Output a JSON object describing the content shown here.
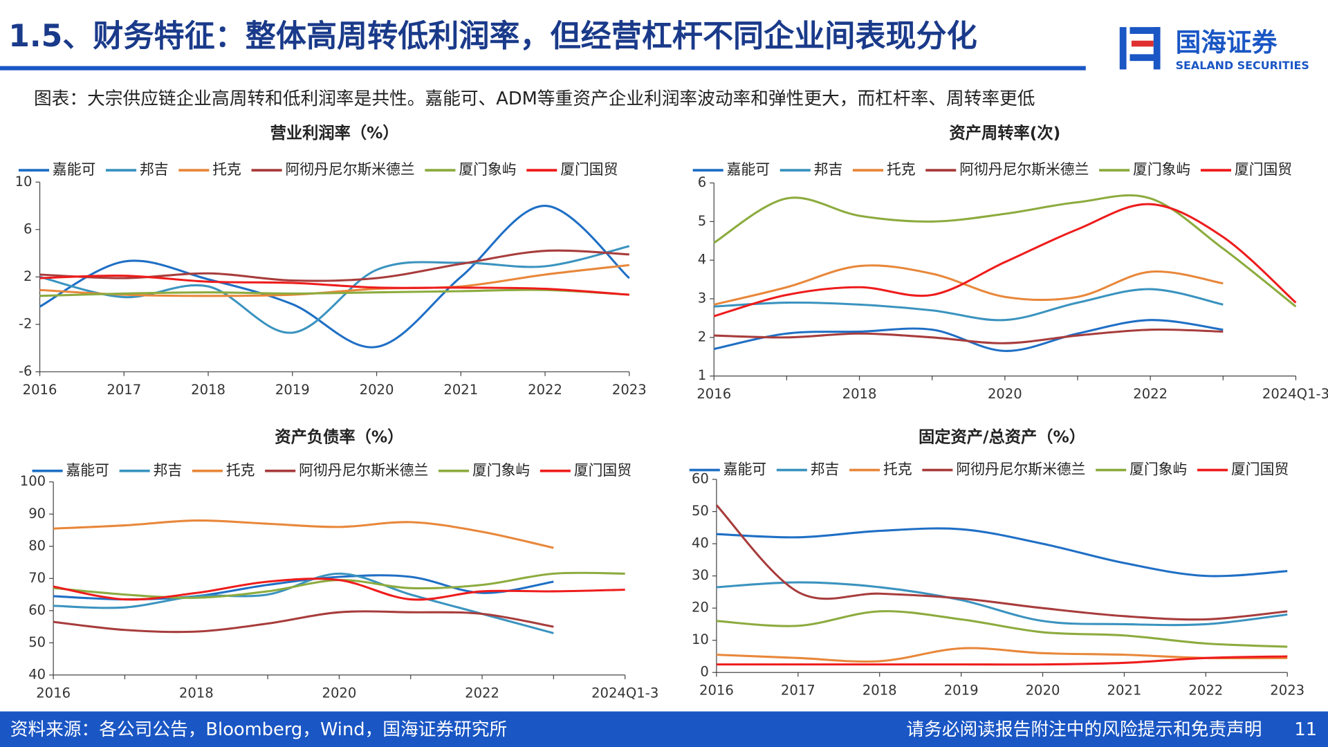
{
  "header": {
    "title": "1.5、财务特征：整体高周转低利润率，但经营杠杆不同企业间表现分化",
    "logo_cn": "国海证券",
    "logo_en": "SEALAND SECURITIES"
  },
  "subtitle": "图表：大宗供应链企业高周转和低利润率是共性。嘉能可、ADM等重资产企业利润率波动率和弹性更大，而杠杆率、周转率更低",
  "chart_data": [
    {
      "type": "line",
      "smooth": true,
      "title": "营业利润率（%）",
      "legend": "top",
      "categories": [
        "2016",
        "2017",
        "2018",
        "2019",
        "2020",
        "2021",
        "2022",
        "2023"
      ],
      "ylim": [
        -6,
        10
      ],
      "yticks": [
        -6,
        -2,
        2,
        6,
        10
      ],
      "series": [
        {
          "name": "嘉能可",
          "color": "#1f6fc5",
          "values": [
            -0.5,
            3.3,
            1.8,
            -0.3,
            -3.9,
            2.0,
            8.0,
            1.9
          ]
        },
        {
          "name": "邦吉",
          "color": "#3a93bf",
          "values": [
            2.0,
            0.3,
            1.2,
            -2.7,
            2.6,
            3.2,
            2.9,
            4.6
          ]
        },
        {
          "name": "托克",
          "color": "#e8873a",
          "values": [
            0.9,
            0.5,
            0.4,
            0.5,
            1.0,
            1.2,
            2.2,
            3.0
          ]
        },
        {
          "name": "阿彻丹尼尔斯米德兰",
          "color": "#a83c3c",
          "values": [
            2.2,
            1.9,
            2.3,
            1.7,
            1.9,
            3.1,
            4.2,
            3.9
          ]
        },
        {
          "name": "厦门象屿",
          "color": "#8cab3e",
          "values": [
            0.4,
            0.6,
            0.7,
            0.6,
            0.7,
            0.8,
            0.9,
            0.5
          ]
        },
        {
          "name": "厦门国贸",
          "color": "#ee1c1c",
          "values": [
            1.9,
            2.1,
            1.6,
            1.5,
            1.1,
            1.1,
            1.0,
            0.5
          ]
        }
      ]
    },
    {
      "type": "line",
      "smooth": true,
      "title": "资产周转率(次)",
      "legend": "top",
      "categories": [
        "2016",
        null,
        "2018",
        null,
        "2020",
        null,
        "2022",
        null,
        "2024Q1-3"
      ],
      "ylim": [
        1,
        6
      ],
      "yticks": [
        1,
        2,
        3,
        4,
        5,
        6
      ],
      "series": [
        {
          "name": "嘉能可",
          "color": "#1f6fc5",
          "values": [
            1.7,
            2.1,
            2.15,
            2.2,
            1.65,
            2.1,
            2.45,
            2.2,
            null
          ]
        },
        {
          "name": "邦吉",
          "color": "#3a93bf",
          "values": [
            2.8,
            2.9,
            2.85,
            2.7,
            2.45,
            2.9,
            3.25,
            2.85,
            null
          ]
        },
        {
          "name": "托克",
          "color": "#e8873a",
          "values": [
            2.85,
            3.3,
            3.85,
            3.65,
            3.05,
            3.05,
            3.7,
            3.4,
            null
          ]
        },
        {
          "name": "阿彻丹尼尔斯米德兰",
          "color": "#a83c3c",
          "values": [
            2.05,
            2.0,
            2.1,
            2.0,
            1.85,
            2.05,
            2.2,
            2.15,
            null
          ]
        },
        {
          "name": "厦门象屿",
          "color": "#8cab3e",
          "values": [
            4.45,
            5.6,
            5.15,
            5.0,
            5.2,
            5.5,
            5.6,
            4.3,
            2.8
          ]
        },
        {
          "name": "厦门国贸",
          "color": "#ee1c1c",
          "values": [
            2.55,
            3.1,
            3.3,
            3.1,
            3.95,
            4.8,
            5.45,
            4.6,
            2.9
          ]
        }
      ]
    },
    {
      "type": "line",
      "smooth": true,
      "title": "资产负债率（%）",
      "legend": "top",
      "categories": [
        "2016",
        null,
        "2018",
        null,
        "2020",
        null,
        "2022",
        null,
        "2024Q1-3"
      ],
      "ylim": [
        40,
        100
      ],
      "yticks": [
        40,
        50,
        60,
        70,
        80,
        90,
        100
      ],
      "series": [
        {
          "name": "嘉能可",
          "color": "#1f6fc5",
          "values": [
            64.5,
            63.5,
            64.5,
            68,
            70.5,
            70.5,
            65.5,
            69,
            null
          ]
        },
        {
          "name": "邦吉",
          "color": "#3a93bf",
          "values": [
            61.5,
            61,
            64.5,
            65,
            71.5,
            65,
            59,
            53,
            null
          ]
        },
        {
          "name": "托克",
          "color": "#e8873a",
          "values": [
            85.5,
            86.5,
            88,
            87,
            86,
            87.5,
            84.5,
            79.5,
            null
          ]
        },
        {
          "name": "阿彻丹尼尔斯米德兰",
          "color": "#a83c3c",
          "values": [
            56.5,
            54,
            53.5,
            56,
            59.5,
            59.5,
            59,
            55,
            null
          ]
        },
        {
          "name": "厦门象屿",
          "color": "#8cab3e",
          "values": [
            67,
            65,
            64,
            66,
            69.5,
            67,
            68,
            71.5,
            71.5
          ]
        },
        {
          "name": "厦门国贸",
          "color": "#ee1c1c",
          "values": [
            67.5,
            63.5,
            65.5,
            69,
            69.5,
            63.5,
            66,
            66,
            66.5
          ]
        }
      ]
    },
    {
      "type": "line",
      "smooth": true,
      "title": "固定资产/总资产（%）",
      "legend": "top",
      "categories": [
        "2016",
        "2017",
        "2018",
        "2019",
        "2020",
        "2021",
        "2022",
        "2023"
      ],
      "ylim": [
        0,
        60
      ],
      "yticks": [
        0,
        10,
        20,
        30,
        40,
        50,
        60
      ],
      "series": [
        {
          "name": "嘉能可",
          "color": "#1f6fc5",
          "values": [
            43,
            42,
            44,
            44.5,
            40,
            34,
            30,
            31.5
          ]
        },
        {
          "name": "邦吉",
          "color": "#3a93bf",
          "values": [
            26.5,
            28,
            26.5,
            22.5,
            16,
            15,
            15,
            18
          ]
        },
        {
          "name": "托克",
          "color": "#e8873a",
          "values": [
            5.5,
            4.5,
            3.5,
            7.5,
            6,
            5.5,
            4.5,
            4.5
          ]
        },
        {
          "name": "阿彻丹尼尔斯米德兰",
          "color": "#a83c3c",
          "values": [
            52,
            25,
            24.5,
            23,
            20,
            17.5,
            16.5,
            19
          ]
        },
        {
          "name": "厦门象屿",
          "color": "#8cab3e",
          "values": [
            16,
            14.5,
            19,
            16.5,
            12.5,
            11.5,
            9,
            8
          ]
        },
        {
          "name": "厦门国贸",
          "color": "#ee1c1c",
          "values": [
            2.5,
            2.5,
            2.5,
            2.5,
            2.5,
            3,
            4.5,
            5
          ]
        }
      ]
    }
  ],
  "footer": {
    "source": "资料来源：各公司公告，Bloomberg，Wind，国海证券研究所",
    "disclaimer": "请务必阅读报告附注中的风险提示和免责声明",
    "page": "11"
  }
}
